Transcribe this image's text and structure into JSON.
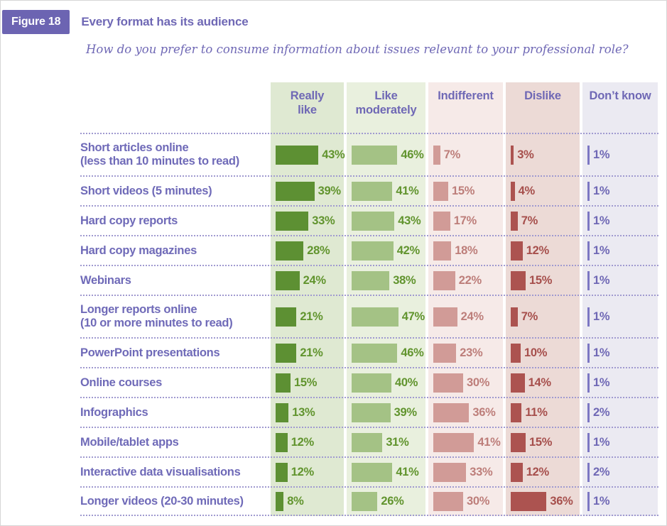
{
  "figure": {
    "badge": "Figure 18",
    "title": "Every format has its audience",
    "subtitle": "How do you prefer to consume information about issues relevant to your professional role?"
  },
  "columns": [
    {
      "key": "really_like",
      "label": "Really\nlike",
      "bar_color": "#5d9033",
      "band_color": "#dfe9d2",
      "text_color": "#61942e"
    },
    {
      "key": "like_moderately",
      "label": "Like\nmoderately",
      "bar_color": "#a4c285",
      "band_color": "#e9f0de",
      "text_color": "#61942e"
    },
    {
      "key": "indifferent",
      "label": "Indifferent",
      "bar_color": "#d19b97",
      "band_color": "#f6eae8",
      "text_color": "#bd7e7a"
    },
    {
      "key": "dislike",
      "label": "Dislike",
      "bar_color": "#ac5350",
      "band_color": "#ecdad6",
      "text_color": "#a64f4c"
    },
    {
      "key": "dont_know",
      "label": "Don’t know",
      "bar_color": "#7c77c3",
      "band_color": "#ebeaf2",
      "text_color": "#6f68b5"
    }
  ],
  "rows": [
    {
      "label": "Short articles online\n(less than 10 minutes to read)",
      "two_line": true,
      "values": [
        43,
        46,
        7,
        3,
        1
      ]
    },
    {
      "label": "Short videos (5 minutes)",
      "two_line": false,
      "values": [
        39,
        41,
        15,
        4,
        1
      ]
    },
    {
      "label": "Hard copy reports",
      "two_line": false,
      "values": [
        33,
        43,
        17,
        7,
        1
      ]
    },
    {
      "label": "Hard copy magazines",
      "two_line": false,
      "values": [
        28,
        42,
        18,
        12,
        1
      ]
    },
    {
      "label": "Webinars",
      "two_line": false,
      "values": [
        24,
        38,
        22,
        15,
        1
      ]
    },
    {
      "label": "Longer reports online\n(10 or more minutes to read)",
      "two_line": true,
      "values": [
        21,
        47,
        24,
        7,
        1
      ]
    },
    {
      "label": "PowerPoint presentations",
      "two_line": false,
      "values": [
        21,
        46,
        23,
        10,
        1
      ]
    },
    {
      "label": "Online courses",
      "two_line": false,
      "values": [
        15,
        40,
        30,
        14,
        1
      ]
    },
    {
      "label": "Infographics",
      "two_line": false,
      "values": [
        13,
        39,
        36,
        11,
        2
      ]
    },
    {
      "label": "Mobile/tablet apps",
      "two_line": false,
      "values": [
        12,
        31,
        41,
        15,
        1
      ]
    },
    {
      "label": "Interactive data visualisations",
      "two_line": false,
      "values": [
        12,
        41,
        33,
        12,
        2
      ]
    },
    {
      "label": "Longer videos (20-30 minutes)",
      "two_line": false,
      "values": [
        8,
        26,
        30,
        36,
        1
      ]
    }
  ],
  "unit": "%",
  "chart_data": {
    "type": "bar",
    "orientation": "horizontal",
    "title": "Every format has its audience",
    "subtitle": "How do you prefer to consume information about issues relevant to your professional role?",
    "unit": "%",
    "value_range": [
      0,
      50
    ],
    "legend_position": "top-column-headers",
    "grid": "dotted-row-separators",
    "categories": [
      "Short articles online (less than 10 minutes to read)",
      "Short videos (5 minutes)",
      "Hard copy reports",
      "Hard copy magazines",
      "Webinars",
      "Longer reports online (10 or more minutes to read)",
      "PowerPoint presentations",
      "Online courses",
      "Infographics",
      "Mobile/tablet apps",
      "Interactive data visualisations",
      "Longer videos (20-30 minutes)"
    ],
    "series": [
      {
        "name": "Really like",
        "color": "#5d9033",
        "values": [
          43,
          39,
          33,
          28,
          24,
          21,
          21,
          15,
          13,
          12,
          12,
          8
        ]
      },
      {
        "name": "Like moderately",
        "color": "#a4c285",
        "values": [
          46,
          41,
          43,
          42,
          38,
          47,
          46,
          40,
          39,
          31,
          41,
          26
        ]
      },
      {
        "name": "Indifferent",
        "color": "#d19b97",
        "values": [
          7,
          15,
          17,
          18,
          22,
          24,
          23,
          30,
          36,
          41,
          33,
          30
        ]
      },
      {
        "name": "Dislike",
        "color": "#ac5350",
        "values": [
          3,
          4,
          7,
          12,
          15,
          7,
          10,
          14,
          11,
          15,
          12,
          36
        ]
      },
      {
        "name": "Don’t know",
        "color": "#7c77c3",
        "values": [
          1,
          1,
          1,
          1,
          1,
          1,
          1,
          1,
          2,
          1,
          2,
          1
        ]
      }
    ]
  }
}
